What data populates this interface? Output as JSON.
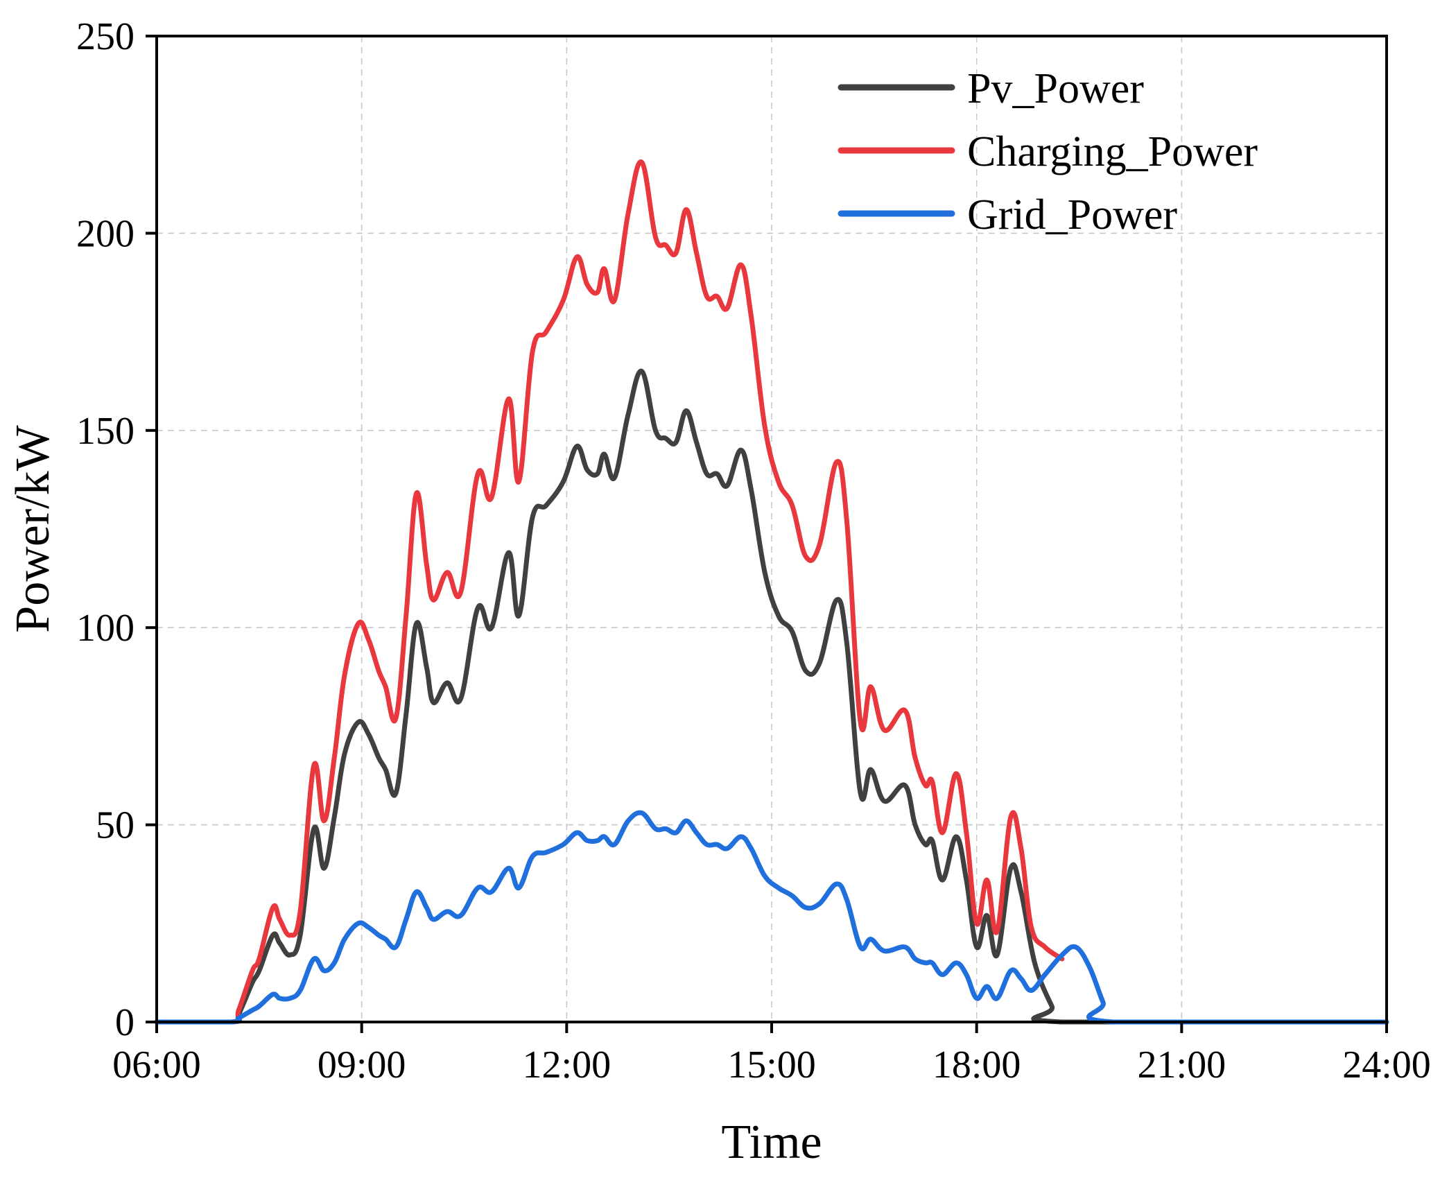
{
  "chart_data": {
    "type": "line",
    "title": "",
    "xlabel": "Time",
    "ylabel": "Power/kW",
    "x_unit": "hours",
    "xlim": [
      6,
      24
    ],
    "ylim": [
      0,
      250
    ],
    "grid": true,
    "legend_position": "top-right",
    "x_ticks": [
      {
        "value": 6,
        "label": "06:00"
      },
      {
        "value": 9,
        "label": "09:00"
      },
      {
        "value": 12,
        "label": "12:00"
      },
      {
        "value": 15,
        "label": "15:00"
      },
      {
        "value": 18,
        "label": "18:00"
      },
      {
        "value": 21,
        "label": "21:00"
      },
      {
        "value": 24,
        "label": "24:00"
      }
    ],
    "y_ticks": [
      {
        "value": 0,
        "label": "0"
      },
      {
        "value": 50,
        "label": "50"
      },
      {
        "value": 100,
        "label": "100"
      },
      {
        "value": 150,
        "label": "150"
      },
      {
        "value": 200,
        "label": "200"
      },
      {
        "value": 250,
        "label": "250"
      }
    ],
    "series": [
      {
        "name": "Pv_Power",
        "color": "#404040",
        "points": [
          [
            6,
            0
          ],
          [
            7.1,
            0
          ],
          [
            7.2,
            2
          ],
          [
            7.4,
            10
          ],
          [
            7.5,
            13
          ],
          [
            7.7,
            22
          ],
          [
            7.8,
            20
          ],
          [
            7.95,
            17
          ],
          [
            8.1,
            22
          ],
          [
            8.3,
            49
          ],
          [
            8.45,
            39
          ],
          [
            8.6,
            52
          ],
          [
            8.75,
            68
          ],
          [
            8.95,
            76
          ],
          [
            9.1,
            73
          ],
          [
            9.25,
            67
          ],
          [
            9.35,
            64
          ],
          [
            9.5,
            58
          ],
          [
            9.65,
            78
          ],
          [
            9.8,
            101
          ],
          [
            9.95,
            90
          ],
          [
            10.05,
            81
          ],
          [
            10.25,
            86
          ],
          [
            10.45,
            82
          ],
          [
            10.7,
            105
          ],
          [
            10.9,
            100
          ],
          [
            11.15,
            119
          ],
          [
            11.3,
            103
          ],
          [
            11.5,
            128
          ],
          [
            11.7,
            131
          ],
          [
            11.95,
            137
          ],
          [
            12.15,
            146
          ],
          [
            12.3,
            140
          ],
          [
            12.45,
            139
          ],
          [
            12.55,
            144
          ],
          [
            12.7,
            138
          ],
          [
            12.9,
            154
          ],
          [
            13.1,
            165
          ],
          [
            13.3,
            150
          ],
          [
            13.45,
            148
          ],
          [
            13.6,
            147
          ],
          [
            13.75,
            155
          ],
          [
            13.9,
            147
          ],
          [
            14.05,
            139
          ],
          [
            14.2,
            139
          ],
          [
            14.35,
            136
          ],
          [
            14.55,
            145
          ],
          [
            14.7,
            135
          ],
          [
            14.9,
            114
          ],
          [
            15.1,
            103
          ],
          [
            15.3,
            99
          ],
          [
            15.5,
            89
          ],
          [
            15.7,
            91
          ],
          [
            15.95,
            107
          ],
          [
            16.1,
            96
          ],
          [
            16.3,
            58
          ],
          [
            16.45,
            64
          ],
          [
            16.65,
            56
          ],
          [
            16.95,
            60
          ],
          [
            17.1,
            50
          ],
          [
            17.25,
            45
          ],
          [
            17.35,
            46
          ],
          [
            17.5,
            36
          ],
          [
            17.7,
            47
          ],
          [
            17.85,
            36
          ],
          [
            18.0,
            19
          ],
          [
            18.15,
            27
          ],
          [
            18.3,
            17
          ],
          [
            18.5,
            39
          ],
          [
            18.65,
            33
          ],
          [
            18.85,
            15
          ],
          [
            19.1,
            4
          ],
          [
            19.25,
            0
          ],
          [
            24,
            0
          ]
        ]
      },
      {
        "name": "Charging_Power",
        "color": "#e8383d",
        "points": [
          [
            6,
            0
          ],
          [
            7.1,
            0
          ],
          [
            7.2,
            3
          ],
          [
            7.4,
            13
          ],
          [
            7.5,
            16
          ],
          [
            7.7,
            29
          ],
          [
            7.8,
            26
          ],
          [
            7.95,
            22
          ],
          [
            8.1,
            28
          ],
          [
            8.3,
            65
          ],
          [
            8.45,
            51
          ],
          [
            8.6,
            67
          ],
          [
            8.75,
            88
          ],
          [
            8.95,
            101
          ],
          [
            9.1,
            97
          ],
          [
            9.25,
            89
          ],
          [
            9.35,
            85
          ],
          [
            9.5,
            77
          ],
          [
            9.65,
            103
          ],
          [
            9.8,
            134
          ],
          [
            9.95,
            116
          ],
          [
            10.05,
            107
          ],
          [
            10.25,
            114
          ],
          [
            10.45,
            109
          ],
          [
            10.7,
            139
          ],
          [
            10.9,
            133
          ],
          [
            11.15,
            158
          ],
          [
            11.3,
            137
          ],
          [
            11.5,
            170
          ],
          [
            11.7,
            175
          ],
          [
            11.95,
            183
          ],
          [
            12.15,
            194
          ],
          [
            12.3,
            187
          ],
          [
            12.45,
            185
          ],
          [
            12.55,
            191
          ],
          [
            12.7,
            183
          ],
          [
            12.9,
            205
          ],
          [
            13.1,
            218
          ],
          [
            13.3,
            199
          ],
          [
            13.45,
            197
          ],
          [
            13.6,
            195
          ],
          [
            13.75,
            206
          ],
          [
            13.9,
            195
          ],
          [
            14.05,
            184
          ],
          [
            14.2,
            184
          ],
          [
            14.35,
            181
          ],
          [
            14.55,
            192
          ],
          [
            14.7,
            179
          ],
          [
            14.9,
            151
          ],
          [
            15.1,
            137
          ],
          [
            15.3,
            131
          ],
          [
            15.5,
            118
          ],
          [
            15.7,
            121
          ],
          [
            15.95,
            142
          ],
          [
            16.1,
            127
          ],
          [
            16.3,
            76
          ],
          [
            16.45,
            85
          ],
          [
            16.65,
            74
          ],
          [
            16.95,
            79
          ],
          [
            17.1,
            67
          ],
          [
            17.25,
            60
          ],
          [
            17.35,
            61
          ],
          [
            17.5,
            48
          ],
          [
            17.7,
            63
          ],
          [
            17.85,
            48
          ],
          [
            18.0,
            25
          ],
          [
            18.15,
            36
          ],
          [
            18.3,
            23
          ],
          [
            18.5,
            52
          ],
          [
            18.65,
            44
          ],
          [
            18.8,
            24
          ],
          [
            19.0,
            19
          ],
          [
            19.25,
            16
          ]
        ]
      },
      {
        "name": "Grid_Power",
        "color": "#1f6fdc",
        "points": [
          [
            6,
            0
          ],
          [
            7.1,
            0
          ],
          [
            7.2,
            1
          ],
          [
            7.4,
            3
          ],
          [
            7.5,
            4
          ],
          [
            7.7,
            7
          ],
          [
            7.8,
            6
          ],
          [
            7.95,
            6
          ],
          [
            8.1,
            8
          ],
          [
            8.3,
            16
          ],
          [
            8.45,
            13
          ],
          [
            8.6,
            15
          ],
          [
            8.75,
            21
          ],
          [
            8.95,
            25
          ],
          [
            9.1,
            24
          ],
          [
            9.25,
            22
          ],
          [
            9.35,
            21
          ],
          [
            9.5,
            19
          ],
          [
            9.65,
            26
          ],
          [
            9.8,
            33
          ],
          [
            9.95,
            29
          ],
          [
            10.05,
            26
          ],
          [
            10.25,
            28
          ],
          [
            10.45,
            27
          ],
          [
            10.7,
            34
          ],
          [
            10.9,
            33
          ],
          [
            11.15,
            39
          ],
          [
            11.3,
            34
          ],
          [
            11.5,
            42
          ],
          [
            11.7,
            43
          ],
          [
            11.95,
            45
          ],
          [
            12.15,
            48
          ],
          [
            12.3,
            46
          ],
          [
            12.45,
            46
          ],
          [
            12.55,
            47
          ],
          [
            12.7,
            45
          ],
          [
            12.9,
            51
          ],
          [
            13.1,
            53
          ],
          [
            13.3,
            49
          ],
          [
            13.45,
            49
          ],
          [
            13.6,
            48
          ],
          [
            13.75,
            51
          ],
          [
            13.9,
            48
          ],
          [
            14.05,
            45
          ],
          [
            14.2,
            45
          ],
          [
            14.35,
            44
          ],
          [
            14.55,
            47
          ],
          [
            14.7,
            44
          ],
          [
            14.9,
            37
          ],
          [
            15.1,
            34
          ],
          [
            15.3,
            32
          ],
          [
            15.5,
            29
          ],
          [
            15.7,
            30
          ],
          [
            15.95,
            35
          ],
          [
            16.1,
            31
          ],
          [
            16.3,
            19
          ],
          [
            16.45,
            21
          ],
          [
            16.65,
            18
          ],
          [
            16.95,
            19
          ],
          [
            17.1,
            16
          ],
          [
            17.25,
            15
          ],
          [
            17.35,
            15
          ],
          [
            17.5,
            12
          ],
          [
            17.7,
            15
          ],
          [
            17.85,
            12
          ],
          [
            18.0,
            6
          ],
          [
            18.15,
            9
          ],
          [
            18.3,
            6
          ],
          [
            18.5,
            13
          ],
          [
            18.65,
            11
          ],
          [
            18.8,
            8
          ],
          [
            19.0,
            12
          ],
          [
            19.25,
            17
          ],
          [
            19.45,
            19
          ],
          [
            19.65,
            14
          ],
          [
            19.85,
            5
          ],
          [
            20.0,
            0
          ],
          [
            24,
            0
          ]
        ]
      }
    ]
  }
}
